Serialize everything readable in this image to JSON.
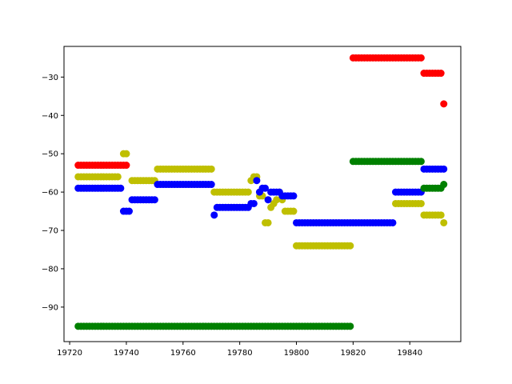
{
  "chart_data": {
    "type": "scatter",
    "title": "",
    "xlabel": "",
    "ylabel": "",
    "xlim": [
      19718,
      19858
    ],
    "ylim": [
      -99,
      -22
    ],
    "xticks": [
      19720,
      19740,
      19760,
      19780,
      19800,
      19820,
      19840
    ],
    "yticks": [
      -30,
      -40,
      -50,
      -60,
      -70,
      -80,
      -90
    ],
    "xtick_labels": [
      "19720",
      "19740",
      "19760",
      "19780",
      "19800",
      "19820",
      "19840"
    ],
    "ytick_labels": [
      "−30",
      "−40",
      "−50",
      "−60",
      "−70",
      "−80",
      "−90"
    ],
    "grid": false,
    "legend": "none",
    "marker": "circle",
    "series": [
      {
        "color": "#ff0000",
        "segments": [
          {
            "x": [
              19723,
              19740
            ],
            "y": -53
          },
          {
            "x": [
              19820,
              19844
            ],
            "y": -25
          },
          {
            "x": [
              19845,
              19851
            ],
            "y": -29
          }
        ],
        "points": [
          {
            "x": 19852,
            "y": -37
          }
        ]
      },
      {
        "color": "#bfbf00",
        "segments": [
          {
            "x": [
              19723,
              19737
            ],
            "y": -56
          },
          {
            "x": [
              19739,
              19740
            ],
            "y": -50
          },
          {
            "x": [
              19742,
              19750
            ],
            "y": -57
          },
          {
            "x": [
              19751,
              19770
            ],
            "y": -54
          },
          {
            "x": [
              19771,
              19783
            ],
            "y": -60
          },
          {
            "x": [
              19800,
              19819
            ],
            "y": -74
          },
          {
            "x": [
              19835,
              19844
            ],
            "y": -63
          },
          {
            "x": [
              19845,
              19851
            ],
            "y": -66
          }
        ],
        "points": [
          {
            "x": 19784,
            "y": -57
          },
          {
            "x": 19785,
            "y": -56
          },
          {
            "x": 19786,
            "y": -56
          },
          {
            "x": 19787,
            "y": -61
          },
          {
            "x": 19788,
            "y": -61
          },
          {
            "x": 19789,
            "y": -68
          },
          {
            "x": 19790,
            "y": -68
          },
          {
            "x": 19791,
            "y": -64
          },
          {
            "x": 19792,
            "y": -63
          },
          {
            "x": 19793,
            "y": -62
          },
          {
            "x": 19794,
            "y": -60
          },
          {
            "x": 19795,
            "y": -62
          },
          {
            "x": 19796,
            "y": -65
          },
          {
            "x": 19797,
            "y": -65
          },
          {
            "x": 19798,
            "y": -65
          },
          {
            "x": 19799,
            "y": -65
          },
          {
            "x": 19852,
            "y": -68
          }
        ]
      },
      {
        "color": "#0000ff",
        "segments": [
          {
            "x": [
              19723,
              19738
            ],
            "y": -59
          },
          {
            "x": [
              19739,
              19741
            ],
            "y": -65
          },
          {
            "x": [
              19742,
              19750
            ],
            "y": -62
          },
          {
            "x": [
              19751,
              19770
            ],
            "y": -58
          },
          {
            "x": [
              19772,
              19783
            ],
            "y": -64
          },
          {
            "x": [
              19800,
              19834
            ],
            "y": -68
          },
          {
            "x": [
              19835,
              19844
            ],
            "y": -60
          },
          {
            "x": [
              19845,
              19852
            ],
            "y": -54
          }
        ],
        "points": [
          {
            "x": 19771,
            "y": -66
          },
          {
            "x": 19784,
            "y": -63
          },
          {
            "x": 19785,
            "y": -63
          },
          {
            "x": 19786,
            "y": -57
          },
          {
            "x": 19787,
            "y": -60
          },
          {
            "x": 19788,
            "y": -59
          },
          {
            "x": 19789,
            "y": -59
          },
          {
            "x": 19790,
            "y": -62
          },
          {
            "x": 19791,
            "y": -60
          },
          {
            "x": 19792,
            "y": -60
          },
          {
            "x": 19793,
            "y": -60
          },
          {
            "x": 19794,
            "y": -60
          },
          {
            "x": 19795,
            "y": -61
          },
          {
            "x": 19796,
            "y": -61
          },
          {
            "x": 19797,
            "y": -61
          },
          {
            "x": 19798,
            "y": -61
          },
          {
            "x": 19799,
            "y": -61
          }
        ]
      },
      {
        "color": "#008000",
        "segments": [
          {
            "x": [
              19723,
              19819
            ],
            "y": -95
          },
          {
            "x": [
              19820,
              19844
            ],
            "y": -52
          },
          {
            "x": [
              19845,
              19851
            ],
            "y": -59
          }
        ],
        "points": [
          {
            "x": 19852,
            "y": -58
          }
        ]
      }
    ]
  }
}
